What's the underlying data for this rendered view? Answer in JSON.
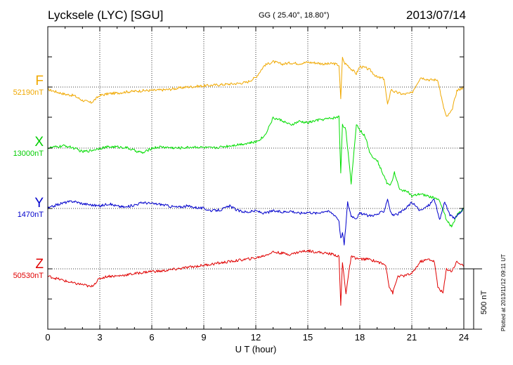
{
  "header": {
    "station": "Lycksele (LYC)  [SGU]",
    "coordinates": "GG ( 25.40°,  18.80°)",
    "date": "2013/07/14"
  },
  "plotted_note": "Plotted at 2013/11/12 09:11 UT",
  "scale_bar_label": "500 nT",
  "chart_data": {
    "type": "line",
    "xlabel": "U T (hour)",
    "xlim": [
      0,
      24
    ],
    "xticks": [
      0,
      3,
      6,
      9,
      12,
      15,
      18,
      21,
      24
    ],
    "scale_nT": 500,
    "grid": true,
    "series": [
      {
        "name": "F",
        "baseline": "52190nT",
        "color": "#f0a800",
        "x": [
          0,
          0.5,
          1,
          1.5,
          2,
          2.5,
          3,
          3.5,
          4,
          4.5,
          5,
          5.5,
          6,
          6.5,
          7,
          7.5,
          8,
          8.5,
          9,
          9.5,
          10,
          10.5,
          11,
          11.5,
          12,
          12.5,
          13,
          13.5,
          14,
          14.5,
          15,
          15.5,
          16,
          16.5,
          16.8,
          16.9,
          17.0,
          17.1,
          17.3,
          17.5,
          17.8,
          18,
          18.3,
          18.6,
          19,
          19.4,
          19.6,
          19.8,
          20,
          20.5,
          21,
          21.5,
          22,
          22.5,
          22.8,
          23,
          23.3,
          23.6,
          24
        ],
        "y": [
          -20,
          -40,
          -60,
          -70,
          -110,
          -130,
          -70,
          -55,
          -50,
          -40,
          -35,
          -30,
          -28,
          -25,
          -20,
          -10,
          0,
          5,
          10,
          15,
          20,
          25,
          30,
          40,
          80,
          180,
          210,
          190,
          200,
          195,
          205,
          200,
          190,
          195,
          180,
          -100,
          250,
          200,
          180,
          150,
          110,
          170,
          160,
          140,
          80,
          70,
          -150,
          -20,
          -40,
          -60,
          -50,
          80,
          60,
          60,
          -150,
          -250,
          -200,
          -30,
          0
        ]
      },
      {
        "name": "X",
        "baseline": "13000nT",
        "color": "#00dd00",
        "x": [
          0,
          0.5,
          1,
          1.5,
          2,
          2.5,
          3,
          3.5,
          4,
          4.5,
          5,
          5.5,
          6,
          6.5,
          7,
          7.5,
          8,
          8.5,
          9,
          9.5,
          10,
          10.5,
          11,
          11.5,
          12,
          12.5,
          13,
          13.5,
          14,
          14.5,
          15,
          15.5,
          16,
          16.5,
          16.8,
          16.9,
          17.0,
          17.2,
          17.5,
          17.8,
          18,
          18.3,
          18.6,
          19,
          19.3,
          19.6,
          19.8,
          20,
          20.3,
          20.7,
          21,
          21.5,
          22,
          22.5,
          22.8,
          23,
          23.3,
          23.6,
          24
        ],
        "y": [
          0,
          10,
          20,
          0,
          -30,
          -20,
          0,
          10,
          10,
          5,
          -20,
          -40,
          0,
          10,
          5,
          0,
          5,
          10,
          5,
          0,
          10,
          20,
          30,
          40,
          50,
          100,
          250,
          230,
          190,
          220,
          210,
          230,
          240,
          250,
          260,
          -200,
          200,
          150,
          -300,
          200,
          150,
          100,
          -50,
          -100,
          -200,
          -300,
          -300,
          -200,
          -350,
          -350,
          -400,
          -380,
          -400,
          -420,
          -500,
          -600,
          -650,
          -550,
          -500
        ]
      },
      {
        "name": "Y",
        "baseline": "1470nT",
        "color": "#0000cc",
        "x": [
          0,
          0.5,
          1,
          1.5,
          2,
          2.5,
          3,
          3.5,
          4,
          4.5,
          5,
          5.5,
          6,
          6.5,
          7,
          7.5,
          8,
          8.5,
          9,
          9.5,
          10,
          10.5,
          11,
          11.5,
          12,
          12.5,
          13,
          13.5,
          14,
          14.5,
          15,
          15.5,
          16,
          16.3,
          16.6,
          16.8,
          16.9,
          17.0,
          17.1,
          17.3,
          17.5,
          17.8,
          18,
          18.5,
          19,
          19.4,
          19.6,
          19.8,
          20,
          20.5,
          21,
          21.5,
          22,
          22.3,
          22.6,
          22.9,
          23.2,
          23.5,
          24
        ],
        "y": [
          0,
          30,
          50,
          60,
          40,
          30,
          20,
          40,
          20,
          10,
          30,
          50,
          40,
          35,
          20,
          10,
          20,
          10,
          0,
          -20,
          -10,
          20,
          -20,
          -30,
          -20,
          -40,
          -20,
          -30,
          -20,
          -40,
          -30,
          -40,
          -20,
          -30,
          -60,
          -100,
          -250,
          -200,
          -300,
          50,
          -60,
          -80,
          -40,
          -60,
          -50,
          -20,
          80,
          -40,
          -60,
          -20,
          50,
          -20,
          30,
          80,
          -100,
          60,
          -60,
          -80,
          0
        ]
      },
      {
        "name": "Z",
        "baseline": "50530nT",
        "color": "#e00000",
        "x": [
          0,
          0.5,
          1,
          1.5,
          2,
          2.5,
          3,
          3.5,
          4,
          4.5,
          5,
          5.5,
          6,
          6.5,
          7,
          7.5,
          8,
          8.5,
          9,
          9.5,
          10,
          10.5,
          11,
          11.5,
          12,
          12.5,
          13,
          13.5,
          14,
          14.5,
          15,
          15.5,
          16,
          16.5,
          16.8,
          16.9,
          17.0,
          17.2,
          17.5,
          18,
          18.5,
          19,
          19.5,
          19.7,
          19.9,
          20.2,
          20.5,
          21,
          21.5,
          22,
          22.3,
          22.5,
          22.8,
          23,
          23.3,
          23.6,
          24
        ],
        "y": [
          -60,
          -80,
          -100,
          -120,
          -130,
          -150,
          -80,
          -60,
          -60,
          -50,
          -40,
          -30,
          -20,
          -20,
          -10,
          0,
          10,
          20,
          30,
          40,
          50,
          60,
          70,
          80,
          90,
          110,
          140,
          130,
          120,
          140,
          150,
          140,
          130,
          120,
          100,
          -300,
          50,
          -200,
          100,
          80,
          80,
          60,
          30,
          -150,
          -200,
          -60,
          -60,
          -40,
          60,
          80,
          60,
          -150,
          -200,
          0,
          -20,
          60,
          20
        ]
      }
    ]
  }
}
